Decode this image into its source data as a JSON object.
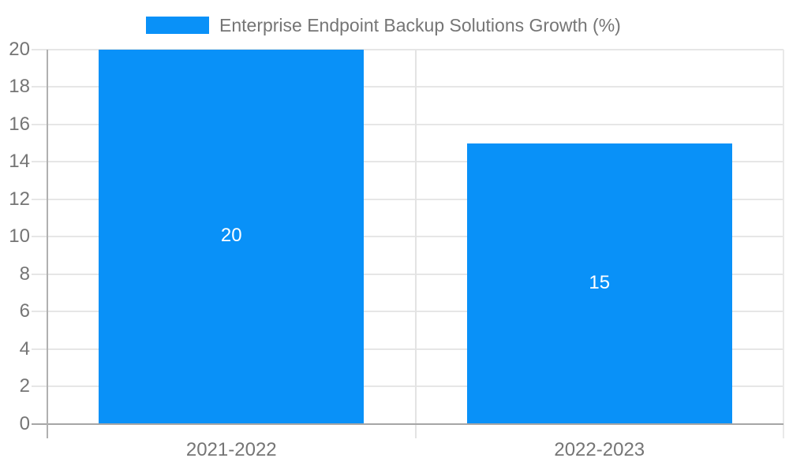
{
  "chart_data": {
    "type": "bar",
    "title": "Enterprise Endpoint Backup Solutions Growth (%)",
    "categories": [
      "2021-2022",
      "2022-2023"
    ],
    "values": [
      20,
      15
    ],
    "bar_value_labels": [
      "20",
      "15"
    ],
    "xlabel": "",
    "ylabel": "",
    "ylim": [
      0,
      20
    ],
    "ytick_step": 2,
    "yticks": [
      0,
      2,
      4,
      6,
      8,
      10,
      12,
      14,
      16,
      18,
      20
    ],
    "grid": true,
    "legend_position": "top",
    "colors": {
      "bar": "#0991f8",
      "axis_text": "#757575",
      "legend_text": "#757575",
      "gridline": "#e6e6e6",
      "baseline": "#a6a6a6",
      "y_axis_line": "#b0b0b0",
      "category_divider": "#e3e3e3",
      "plot_right_edge": "#e9e9e9",
      "bar_value_text": "#ffffff",
      "background": "#ffffff"
    }
  }
}
